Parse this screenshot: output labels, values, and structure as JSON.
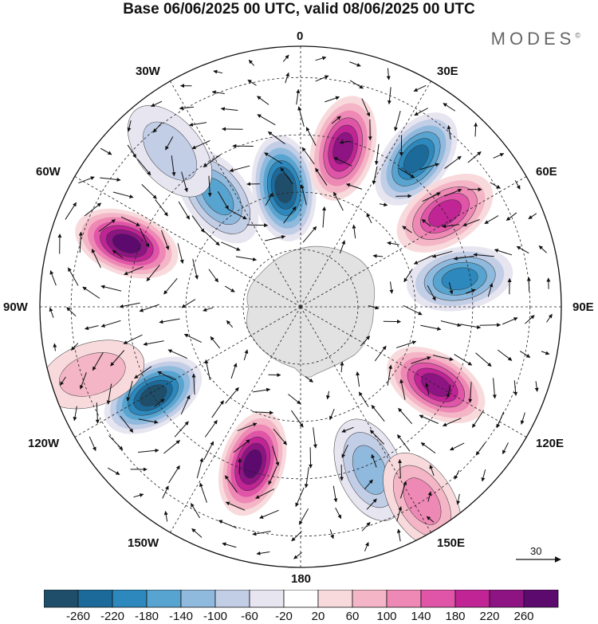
{
  "title": "Base 06/06/2025 00 UTC, valid 08/06/2025 00 UTC",
  "brand": "MODES",
  "brand_mark": "©",
  "longitude_labels": {
    "0": "0",
    "30E": "30E",
    "60E": "60E",
    "90E": "90E",
    "120E": "120E",
    "150E": "150E",
    "180": "180",
    "150W": "150W",
    "120W": "120W",
    "90W": "90W",
    "60W": "60W",
    "30W": "30W"
  },
  "reference_vector": {
    "value": "30"
  },
  "colorbar": {
    "ticks": [
      "-260",
      "-220",
      "-180",
      "-140",
      "-100",
      "-60",
      "-20",
      "20",
      "60",
      "100",
      "140",
      "180",
      "220",
      "260"
    ],
    "colors": [
      "#1f4e6b",
      "#1c6a9a",
      "#2c88bd",
      "#58a4d0",
      "#8fb9dd",
      "#c2cde6",
      "#e6e5f0",
      "#ffffff",
      "#f8dadd",
      "#f4b6c6",
      "#ee88b4",
      "#e055a8",
      "#c02495",
      "#8e1483",
      "#5c0a6e"
    ]
  },
  "map_data": {
    "projection": "south polar stereographic",
    "field_colors": {
      "land": "#e0e0e0",
      "coast": "#8a8a8a"
    },
    "anomaly_centers": [
      {
        "lon": 352,
        "colat": 0.46,
        "value": -260
      },
      {
        "lon": 15,
        "colat": 0.63,
        "value": 230
      },
      {
        "lon": 38,
        "colat": 0.72,
        "value": -210
      },
      {
        "lon": 57,
        "colat": 0.66,
        "value": 200
      },
      {
        "lon": 80,
        "colat": 0.62,
        "value": -200
      },
      {
        "lon": 120,
        "colat": 0.6,
        "value": 240
      },
      {
        "lon": 157,
        "colat": 0.68,
        "value": -110
      },
      {
        "lon": 197,
        "colat": 0.63,
        "value": 250
      },
      {
        "lon": 239,
        "colat": 0.66,
        "value": -260
      },
      {
        "lon": 290,
        "colat": 0.71,
        "value": 260
      },
      {
        "lon": 323,
        "colat": 0.53,
        "value": -160
      },
      {
        "lon": 148,
        "colat": 0.88,
        "value": 100
      },
      {
        "lon": 320,
        "colat": 0.78,
        "value": -60
      },
      {
        "lon": 252,
        "colat": 0.84,
        "value": 60
      }
    ]
  }
}
